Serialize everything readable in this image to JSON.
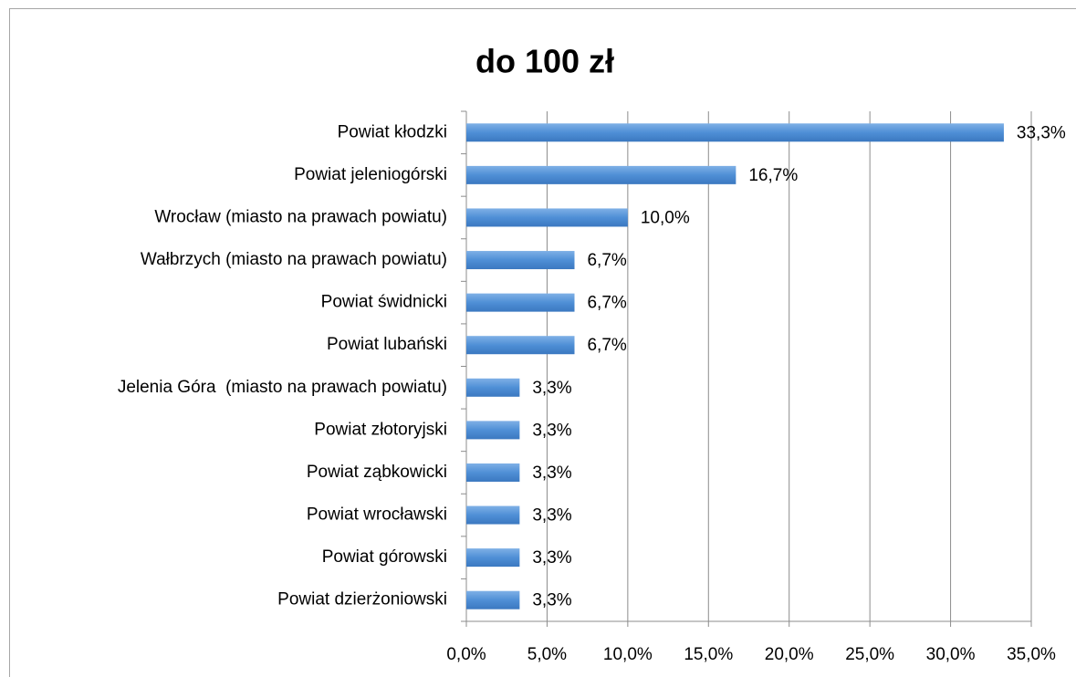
{
  "chart_data": {
    "type": "barh",
    "title": "do 100 zł",
    "categories": [
      "Powiat kłodzki",
      "Powiat jeleniogórski",
      "Wrocław (miasto na prawach powiatu)",
      "Wałbrzych (miasto na prawach powiatu)",
      "Powiat świdnicki",
      "Powiat lubański",
      "Jelenia Góra  (miasto na prawach powiatu)",
      "Powiat złotoryjski",
      "Powiat ząbkowicki",
      "Powiat wrocławski",
      "Powiat górowski",
      "Powiat dzierżoniowski"
    ],
    "values": [
      33.3,
      16.7,
      10.0,
      6.7,
      6.7,
      6.7,
      3.3,
      3.3,
      3.3,
      3.3,
      3.3,
      3.3
    ],
    "value_labels": [
      "33,3%",
      "16,7%",
      "10,0%",
      "6,7%",
      "6,7%",
      "6,7%",
      "3,3%",
      "3,3%",
      "3,3%",
      "3,3%",
      "3,3%",
      "3,3%"
    ],
    "color": "#4f8fd6",
    "xlim": [
      0,
      35
    ],
    "xticks": [
      {
        "value": 0,
        "label": "0,0%"
      },
      {
        "value": 5,
        "label": "5,0%"
      },
      {
        "value": 10,
        "label": "10,0%"
      },
      {
        "value": 15,
        "label": "15,0%"
      },
      {
        "value": 20,
        "label": "20,0%"
      },
      {
        "value": 25,
        "label": "25,0%"
      },
      {
        "value": 30,
        "label": "30,0%"
      },
      {
        "value": 35,
        "label": "35,0%"
      }
    ],
    "grid": true
  }
}
